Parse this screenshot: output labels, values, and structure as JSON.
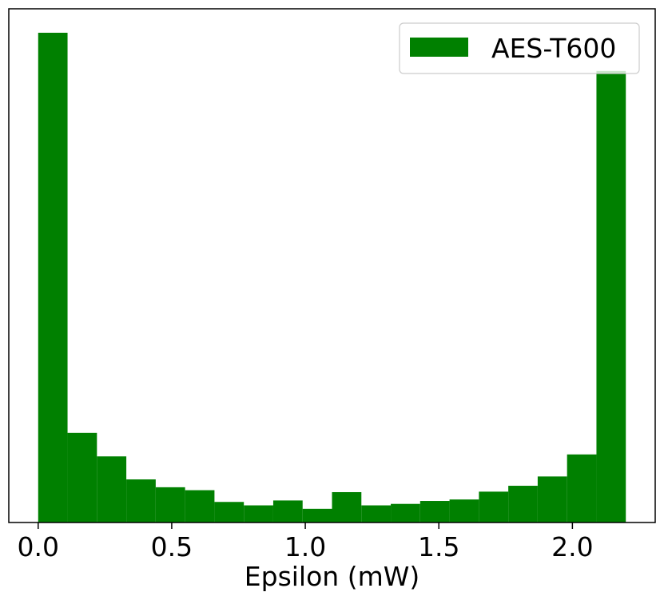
{
  "chart_data": {
    "type": "bar",
    "subtype": "histogram",
    "title": "",
    "xlabel": "Epsilon (mW)",
    "ylabel": "",
    "xlim": [
      -0.11,
      2.31
    ],
    "ylim": [
      0,
      1.0
    ],
    "y_ticks_shown": false,
    "x_ticks": [
      0.0,
      0.5,
      1.0,
      1.5,
      2.0
    ],
    "x_tick_labels": [
      "0.0",
      "0.5",
      "1.0",
      "1.5",
      "2.0"
    ],
    "bin_edges": [
      0.0,
      0.11,
      0.22,
      0.33,
      0.44,
      0.55,
      0.66,
      0.77,
      0.88,
      0.99,
      1.1,
      1.21,
      1.32,
      1.43,
      1.54,
      1.65,
      1.76,
      1.87,
      1.98,
      2.09,
      2.2
    ],
    "series": [
      {
        "name": "AES-T600",
        "color": "#008000",
        "values": [
          1.0,
          0.183,
          0.135,
          0.088,
          0.072,
          0.066,
          0.042,
          0.035,
          0.045,
          0.028,
          0.062,
          0.035,
          0.038,
          0.044,
          0.047,
          0.063,
          0.075,
          0.094,
          0.139,
          0.922
        ]
      }
    ],
    "legend": {
      "position": "top-right",
      "entries": [
        "AES-T600"
      ]
    },
    "grid": false
  }
}
